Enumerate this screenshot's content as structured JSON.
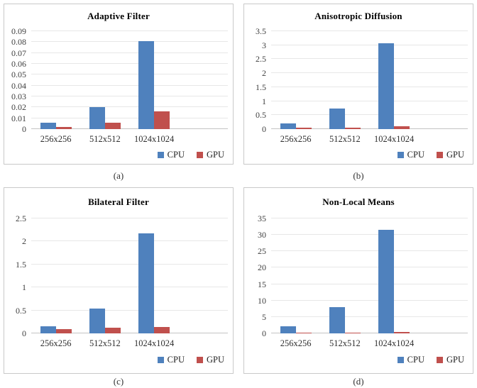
{
  "figure": {
    "background": "#ffffff",
    "grid_layout": "2x2"
  },
  "colors": {
    "cpu": "#4f81bd",
    "gpu": "#c0504d",
    "gridline": "#e7e7e7",
    "panel_border": "#c9c9c9"
  },
  "chart_data": [
    {
      "type": "bar",
      "title": "Adaptive Filter",
      "caption": "(a)",
      "categories": [
        "256x256",
        "512x512",
        "1024x1024"
      ],
      "series": [
        {
          "name": "CPU",
          "color": "#4f81bd",
          "values": [
            0.006,
            0.0205,
            0.081
          ]
        },
        {
          "name": "GPU",
          "color": "#c0504d",
          "values": [
            0.002,
            0.006,
            0.016
          ]
        }
      ],
      "ylim": [
        0,
        0.09
      ],
      "ymax": 0.09,
      "yticks": [
        {
          "label": "0",
          "value": 0
        },
        {
          "label": "0.01",
          "value": 0.01
        },
        {
          "label": "0.02",
          "value": 0.02
        },
        {
          "label": "0.03",
          "value": 0.03
        },
        {
          "label": "0.04",
          "value": 0.04
        },
        {
          "label": "0.05",
          "value": 0.05
        },
        {
          "label": "0.06",
          "value": 0.06
        },
        {
          "label": "0.07",
          "value": 0.07
        },
        {
          "label": "0.08",
          "value": 0.08
        },
        {
          "label": "0.09",
          "value": 0.09
        }
      ],
      "grid": "horizontal",
      "legend_position": "bottom-right"
    },
    {
      "type": "bar",
      "title": "Anisotropic Diffusion",
      "caption": "(b)",
      "categories": [
        "256x256",
        "512x512",
        "1024x1024"
      ],
      "series": [
        {
          "name": "CPU",
          "color": "#4f81bd",
          "values": [
            0.2,
            0.73,
            3.07
          ]
        },
        {
          "name": "GPU",
          "color": "#c0504d",
          "values": [
            0.05,
            0.05,
            0.09
          ]
        }
      ],
      "ylim": [
        0,
        3.5
      ],
      "ymax": 3.5,
      "yticks": [
        {
          "label": "0",
          "value": 0
        },
        {
          "label": "0.5",
          "value": 0.5
        },
        {
          "label": "1",
          "value": 1
        },
        {
          "label": "1.5",
          "value": 1.5
        },
        {
          "label": "2",
          "value": 2
        },
        {
          "label": "2.5",
          "value": 2.5
        },
        {
          "label": "3",
          "value": 3
        },
        {
          "label": "3.5",
          "value": 3.5
        }
      ],
      "grid": "horizontal",
      "legend_position": "bottom-right"
    },
    {
      "type": "bar",
      "title": "Bilateral Filter",
      "caption": "(c)",
      "categories": [
        "256x256",
        "512x512",
        "1024x1024"
      ],
      "series": [
        {
          "name": "CPU",
          "color": "#4f81bd",
          "values": [
            0.15,
            0.54,
            2.17
          ]
        },
        {
          "name": "GPU",
          "color": "#c0504d",
          "values": [
            0.1,
            0.12,
            0.14
          ]
        }
      ],
      "ylim": [
        0,
        2.5
      ],
      "ymax": 2.5,
      "yticks": [
        {
          "label": "0",
          "value": 0
        },
        {
          "label": "0.5",
          "value": 0.5
        },
        {
          "label": "1",
          "value": 1
        },
        {
          "label": "1.5",
          "value": 1.5
        },
        {
          "label": "2",
          "value": 2
        },
        {
          "label": "2.5",
          "value": 2.5
        }
      ],
      "grid": "horizontal",
      "legend_position": "bottom-right"
    },
    {
      "type": "bar",
      "title": "Non-Local Means",
      "caption": "(d)",
      "categories": [
        "256x256",
        "512x512",
        "1024x1024"
      ],
      "series": [
        {
          "name": "CPU",
          "color": "#4f81bd",
          "values": [
            2.1,
            8,
            31.5
          ]
        },
        {
          "name": "GPU",
          "color": "#c0504d",
          "values": [
            0.3,
            0.3,
            0.35
          ]
        }
      ],
      "ylim": [
        0,
        35
      ],
      "ymax": 35,
      "yticks": [
        {
          "label": "0",
          "value": 0
        },
        {
          "label": "5",
          "value": 5
        },
        {
          "label": "10",
          "value": 10
        },
        {
          "label": "15",
          "value": 15
        },
        {
          "label": "20",
          "value": 20
        },
        {
          "label": "25",
          "value": 25
        },
        {
          "label": "30",
          "value": 30
        },
        {
          "label": "35",
          "value": 35
        }
      ],
      "grid": "horizontal",
      "legend_position": "bottom-right"
    }
  ]
}
